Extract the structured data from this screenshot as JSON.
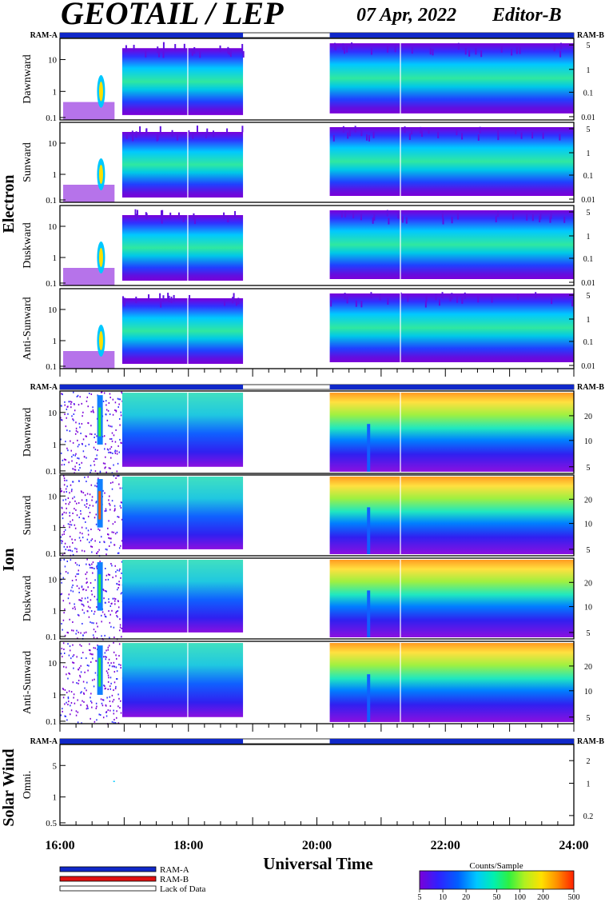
{
  "header": {
    "instrument": "GEOTAIL / LEP",
    "date": "07 Apr, 2022",
    "editor": "Editor-B"
  },
  "ram_labels": {
    "left": "RAM-A",
    "right": "RAM-B"
  },
  "colors": {
    "ram_a": "#1028c8",
    "ram_b": "#e01010",
    "lack": "#ffffff"
  },
  "sections": [
    {
      "name": "Electron",
      "panels": [
        "Dawnward",
        "Sunward",
        "Duskward",
        "Anti-Sunward"
      ],
      "left_ticks": [
        "10",
        "1",
        "0.1"
      ],
      "right_ticks": [
        "5",
        "1",
        "0.1",
        "0.01"
      ]
    },
    {
      "name": "Ion",
      "panels": [
        "Dawnward",
        "Sunward",
        "Duskward",
        "Anti-Sunward"
      ],
      "left_ticks": [
        "10",
        "1",
        "0.1"
      ],
      "right_ticks": [
        "20",
        "10",
        "5"
      ]
    },
    {
      "name": "Solar Wind",
      "panels": [
        "Omni."
      ],
      "left_ticks": [
        "5",
        "1",
        "0.5"
      ],
      "right_ticks": [
        "2",
        "1",
        "0.2"
      ]
    }
  ],
  "x_axis": {
    "label": "Universal Time",
    "ticks": [
      "16:00",
      "18:00",
      "20:00",
      "22:00",
      "24:00"
    ]
  },
  "legend": {
    "items": [
      "RAM-A",
      "RAM-B",
      "Lack of Data"
    ]
  },
  "colorbar": {
    "title": "Counts/Sample",
    "ticks": [
      "5",
      "10",
      "20",
      "50",
      "100",
      "200",
      "500"
    ],
    "colors": [
      "#7a00d8",
      "#3020ff",
      "#0060ff",
      "#00c8ff",
      "#00f0b0",
      "#30f040",
      "#b0f020",
      "#ffe000",
      "#ff9000",
      "#ff2000"
    ]
  },
  "chart_data": {
    "type": "heatmap",
    "title": "GEOTAIL / LEP 07 Apr, 2022",
    "xlabel": "Universal Time",
    "x_range_hours": [
      16,
      24
    ],
    "data_gaps_hours": [
      [
        16.0,
        16.0
      ],
      [
        18.85,
        20.2
      ]
    ],
    "ram_mode_segments": [
      {
        "mode": "RAM-A",
        "from": 16.0,
        "to": 18.85
      },
      {
        "mode": "Lack of Data",
        "from": 18.85,
        "to": 20.2
      },
      {
        "mode": "RAM-A",
        "from": 20.2,
        "to": 24.0
      }
    ],
    "colorbar_range": [
      5,
      500
    ]
  }
}
